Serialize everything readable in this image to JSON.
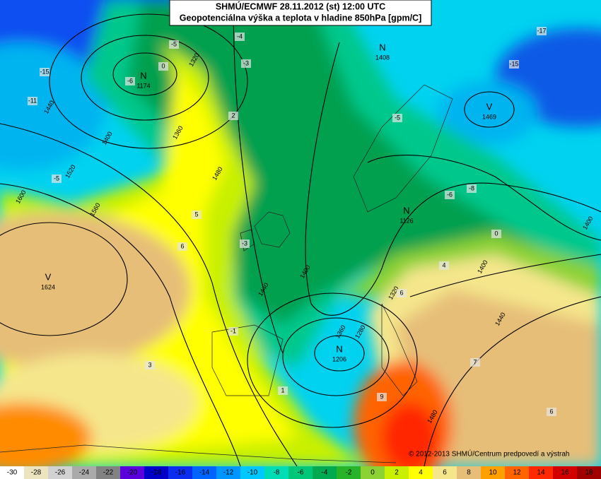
{
  "title": "SHMÚ/ECMWF 28.11.2012 (st) 12:00 UTC",
  "subtitle": "Geopotenciálna výška a teplota v hladine 850hPa [gpm/C]",
  "centers": [
    {
      "letter": "N",
      "value": "1174"
    },
    {
      "letter": "N",
      "value": "1408"
    },
    {
      "letter": "V",
      "value": "1469"
    },
    {
      "letter": "V",
      "value": "1624"
    },
    {
      "letter": "N",
      "value": "1206"
    },
    {
      "letter": "N",
      "value": "1126"
    }
  ],
  "contour_labels": [
    "1440",
    "1400",
    "1360",
    "1320",
    "1480",
    "1520",
    "1560",
    "1600",
    "1440",
    "1400",
    "1360",
    "1320",
    "1280",
    "1400",
    "1440",
    "1480",
    "1400"
  ],
  "temp_labels": [
    "-15",
    "-11",
    "-6",
    "-5",
    "0",
    "-4",
    "-3",
    "2",
    "-5",
    "5",
    "6",
    "3",
    "-1",
    "1",
    "9",
    "6",
    "7",
    "6",
    "4",
    "0",
    "-8",
    "-6",
    "-5",
    "-17",
    "-15",
    "-3"
  ],
  "copyright": "© 2012-2013 SHMÚ/Centrum predpovedí a výstrah",
  "legend": {
    "ticks": [
      -30,
      -28,
      -26,
      -24,
      -22,
      -20,
      -18,
      -16,
      -14,
      -12,
      -10,
      -8,
      -6,
      -4,
      -2,
      0,
      2,
      4,
      6,
      8,
      10,
      12,
      14,
      16,
      18
    ],
    "colors": [
      "#ffffff",
      "#ece3bf",
      "#d2d2d2",
      "#aaaaaa",
      "#828282",
      "#5a00dc",
      "#0000c8",
      "#0a2df0",
      "#0064ff",
      "#0096ff",
      "#00c8ff",
      "#00dcb4",
      "#00c878",
      "#00aa50",
      "#28b428",
      "#8cd232",
      "#c8f000",
      "#ffff00",
      "#f5e68c",
      "#e6be78",
      "#ffa000",
      "#ff6400",
      "#ff2800",
      "#d20000",
      "#a00000"
    ]
  }
}
